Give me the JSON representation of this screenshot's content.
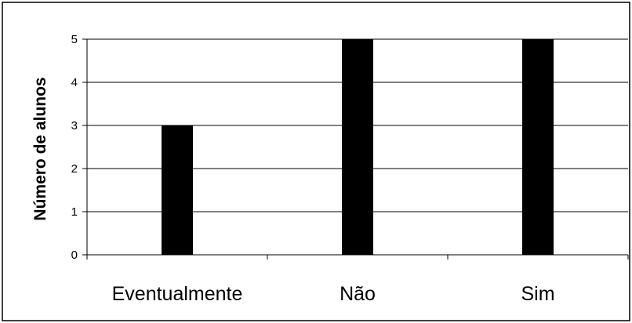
{
  "chart_data": {
    "type": "bar",
    "categories": [
      "Eventualmente",
      "Não",
      "Sim"
    ],
    "values": [
      3,
      5,
      5
    ],
    "title": "",
    "xlabel": "",
    "ylabel": "Número de alunos",
    "ylim": [
      0,
      5
    ],
    "yticks": [
      "0",
      "1",
      "2",
      "3",
      "4",
      "5"
    ],
    "grid": true,
    "legend": "none",
    "bar_color": "#000000"
  }
}
